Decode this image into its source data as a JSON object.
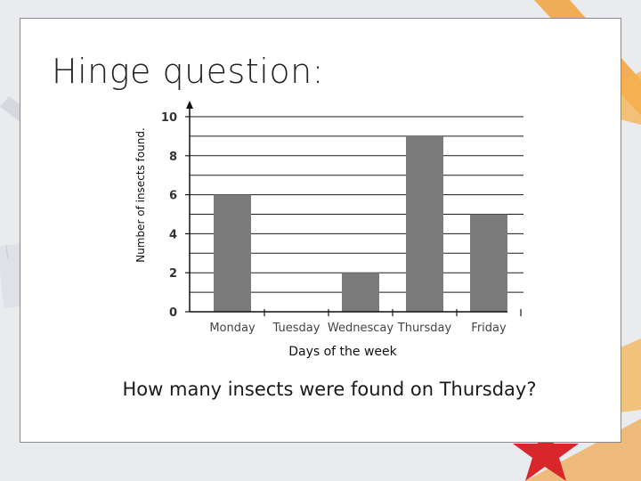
{
  "slide": {
    "title": "Hinge question:",
    "question": "How many insects were found on Thursday?"
  },
  "chart_data": {
    "type": "bar",
    "categories": [
      "Monday",
      "Tuesday",
      "Wednescay",
      "Thursday",
      "Friday"
    ],
    "values": [
      6,
      0,
      2,
      9,
      5
    ],
    "title": "",
    "xlabel": "Days of the week",
    "ylabel": "Number of insects found.",
    "ylim": [
      0,
      10
    ],
    "yticks": [
      0,
      2,
      4,
      6,
      8,
      10
    ],
    "grid": true,
    "bar_color": "#7b7b7b"
  },
  "colors": {
    "accent_orange": "#f2a23a",
    "accent_red": "#d9262b"
  }
}
